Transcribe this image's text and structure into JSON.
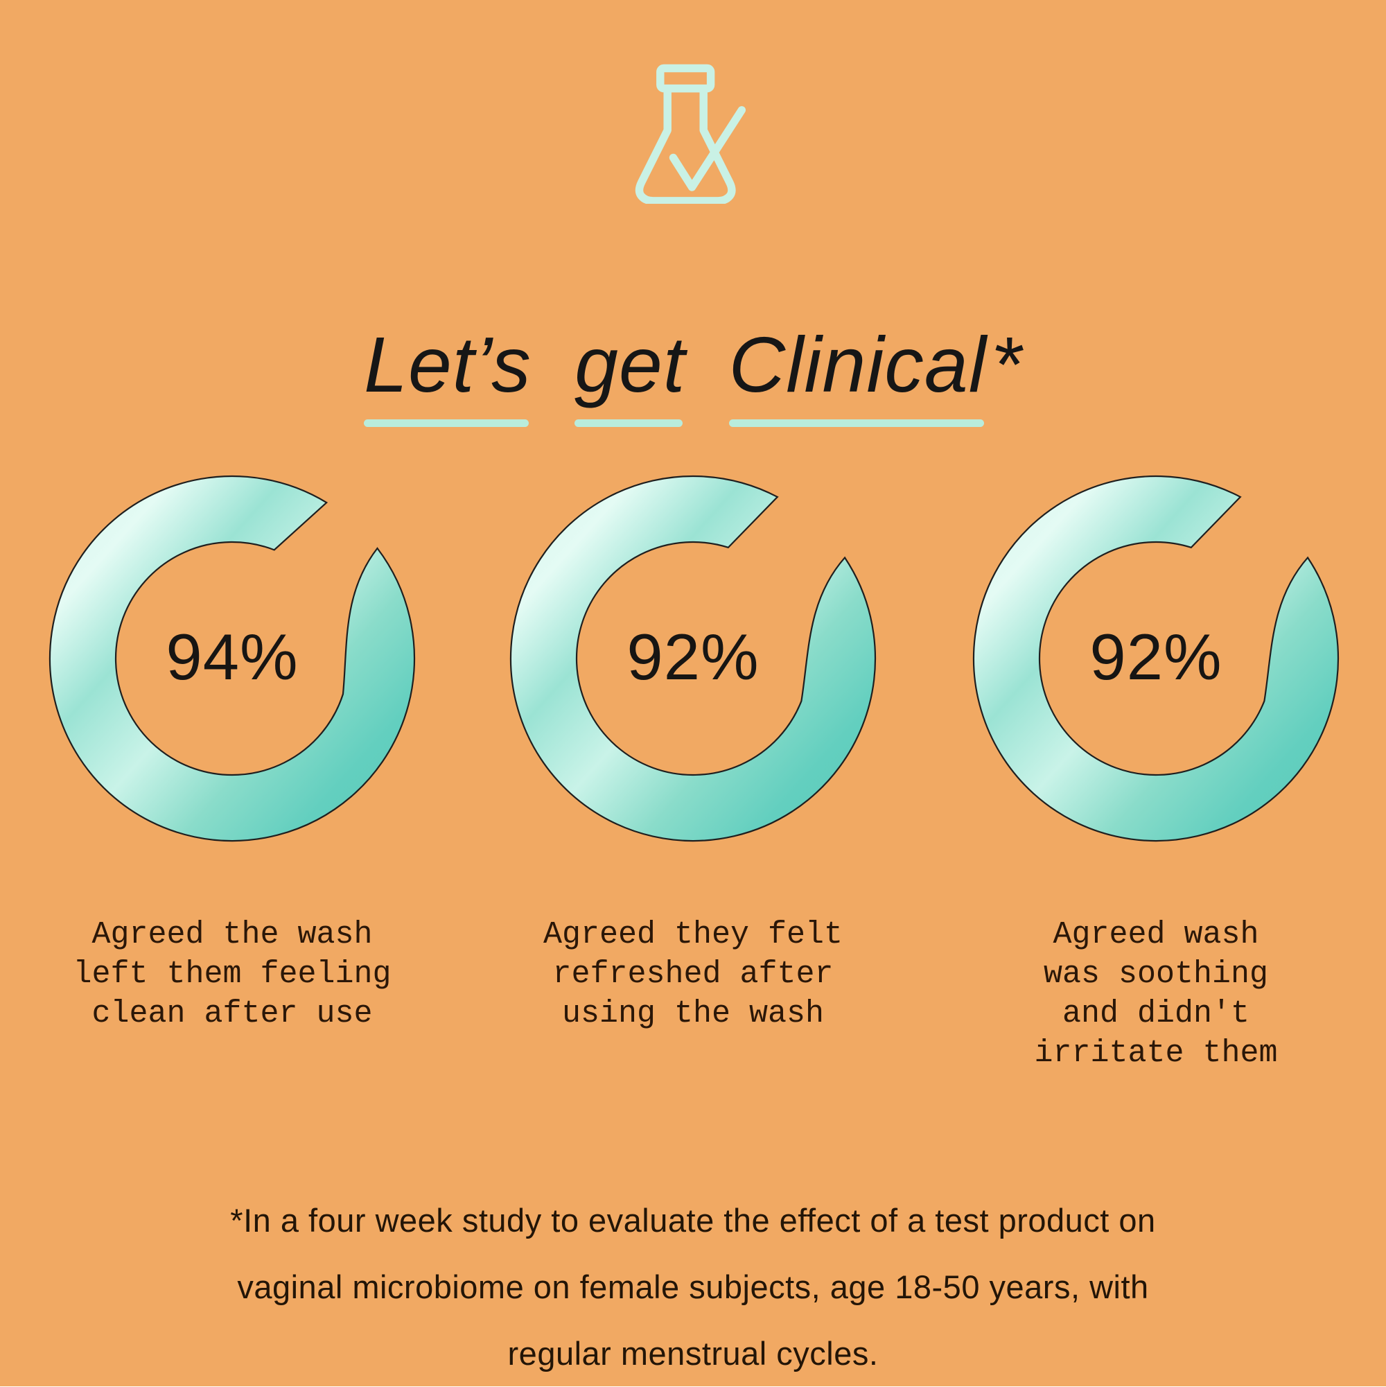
{
  "theme": {
    "background": "#f1a963",
    "mint_light": "#c9f1e5",
    "underline_mint": "#b9ecdc",
    "ink": "#161616",
    "text_dark": "#2b1708",
    "ring_outline": "#1f1f1f"
  },
  "icon": {
    "name": "flask-with-checkmark",
    "color": "#c9f1e5"
  },
  "title": {
    "words": [
      "Let’s",
      "get",
      "Clinical"
    ],
    "asterisk": "*"
  },
  "chart_data": {
    "type": "donut-gauges",
    "title": "Let’s get Clinical*",
    "legend_position": "none",
    "grid": false,
    "series": [
      {
        "percent": 94,
        "label": "94%",
        "caption": "Agreed the wash\nleft them feeling\nclean after use"
      },
      {
        "percent": 92,
        "label": "92%",
        "caption": "Agreed they felt\nrefreshed after\nusing the wash"
      },
      {
        "percent": 92,
        "label": "92%",
        "caption": "Agreed wash\nwas soothing\nand didn't\nirritate them"
      }
    ],
    "ring_gradient": [
      "#d3f6ec",
      "#e4fbf4",
      "#9be3d4",
      "#c9f3e8",
      "#8adcca",
      "#63cfbf",
      "#5accbb"
    ],
    "ring_outline": "#1f1f1f"
  },
  "footnote": {
    "text": "*In a four week study to evaluate the effect of a test product on\nvaginal microbiome on female subjects, age 18-50 years, with\nregular menstrual cycles."
  }
}
